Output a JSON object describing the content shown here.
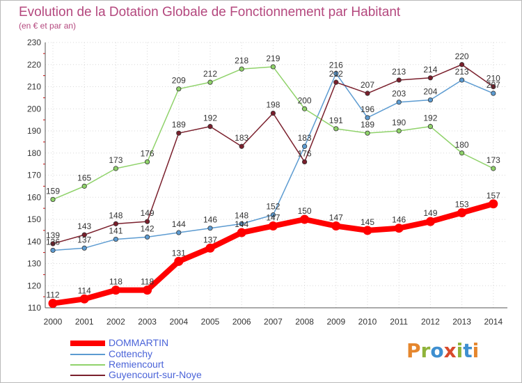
{
  "title": "Evolution de la Dotation Globale de Fonctionnement par Habitant",
  "subtitle": "(en € et par an)",
  "brand": {
    "text": "Proxiti"
  },
  "chart_data": {
    "type": "line",
    "x": [
      "2000",
      "2001",
      "2002",
      "2003",
      "2004",
      "2005",
      "2006",
      "2007",
      "2008",
      "2009",
      "2010",
      "2011",
      "2012",
      "2013",
      "2014"
    ],
    "ylim": [
      110,
      230
    ],
    "yticks": [
      "110",
      "120",
      "130",
      "140",
      "150",
      "160",
      "170",
      "180",
      "190",
      "200",
      "210",
      "220",
      "230"
    ],
    "grid": true,
    "legend_position": "bottom-left",
    "series": [
      {
        "name": "DOMMARTIN",
        "color": "#ff0000",
        "highlight": true,
        "values": [
          112,
          114,
          118,
          118,
          131,
          137,
          144,
          147,
          150,
          147,
          145,
          146,
          149,
          153,
          157
        ],
        "labels": [
          "112",
          "114",
          "118",
          "118",
          "131",
          "137",
          "144",
          "147",
          "150",
          "147",
          "145",
          "146",
          "149",
          "153",
          "157"
        ]
      },
      {
        "name": "Cottenchy",
        "color": "#5c9bd1",
        "values": [
          136,
          137,
          141,
          142,
          144,
          146,
          148,
          152,
          183,
          216,
          196,
          203,
          204,
          213,
          207
        ],
        "labels": [
          "136",
          "137",
          "141",
          "142",
          "144",
          "146",
          "148",
          "152",
          "183",
          "216",
          "196",
          "203",
          "204",
          "213",
          "207"
        ]
      },
      {
        "name": "Remiencourt",
        "color": "#8fd26a",
        "values": [
          159,
          165,
          173,
          176,
          209,
          212,
          218,
          219,
          200,
          191,
          189,
          190,
          192,
          180,
          173
        ],
        "labels": [
          "159",
          "165",
          "173",
          "176",
          "209",
          "212",
          "218",
          "219",
          "200",
          "191",
          "189",
          "190",
          "192",
          "180",
          "173"
        ]
      },
      {
        "name": "Guyencourt-sur-Noye",
        "color": "#7a1f2c",
        "values": [
          139,
          143,
          148,
          149,
          189,
          192,
          183,
          198,
          176,
          212,
          207,
          213,
          214,
          220,
          210
        ],
        "labels": [
          "139",
          "143",
          "148",
          "149",
          "189",
          "192",
          "183",
          "198",
          "176",
          "212",
          "207",
          "213",
          "214",
          "220",
          "210"
        ]
      }
    ]
  }
}
